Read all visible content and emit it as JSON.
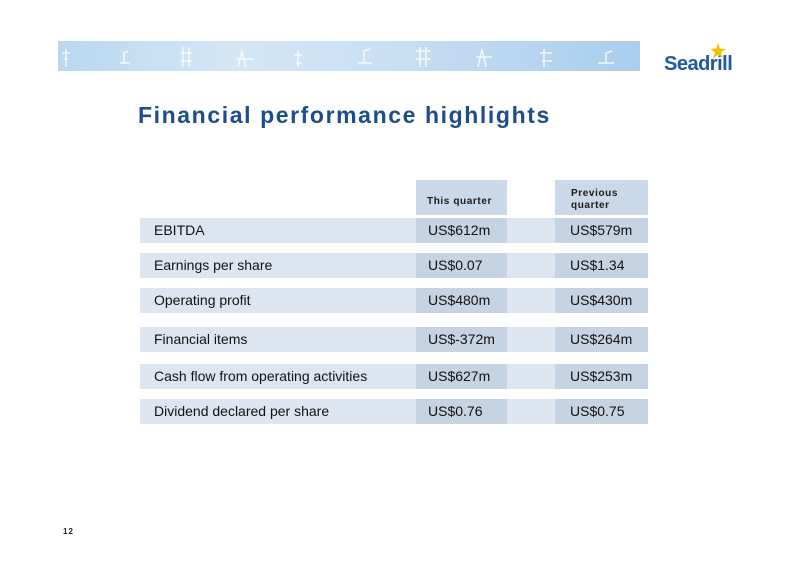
{
  "brand": {
    "logo_text": "Seadrill",
    "accent": "#1d5aa6",
    "star_color": "#f2c200"
  },
  "slide": {
    "title": "Financial performance highlights",
    "page_number": "12"
  },
  "table": {
    "headers": {
      "this_quarter": "This quarter",
      "previous_quarter": "Previous quarter"
    },
    "rows": [
      {
        "label": "EBITDA",
        "this_quarter": "US$612m",
        "previous_quarter": "US$579m"
      },
      {
        "label": "Earnings per share",
        "this_quarter": "US$0.07",
        "previous_quarter": "US$1.34"
      },
      {
        "label": "Operating profit",
        "this_quarter": "US$480m",
        "previous_quarter": "US$430m"
      },
      {
        "label": "Financial items",
        "this_quarter": "US$-372m",
        "previous_quarter": "US$264m"
      },
      {
        "label": "Cash flow from operating activities",
        "this_quarter": "US$627m",
        "previous_quarter": "US$253m"
      },
      {
        "label": "Dividend declared per share",
        "this_quarter": "US$0.76",
        "previous_quarter": "US$0.75"
      }
    ]
  }
}
